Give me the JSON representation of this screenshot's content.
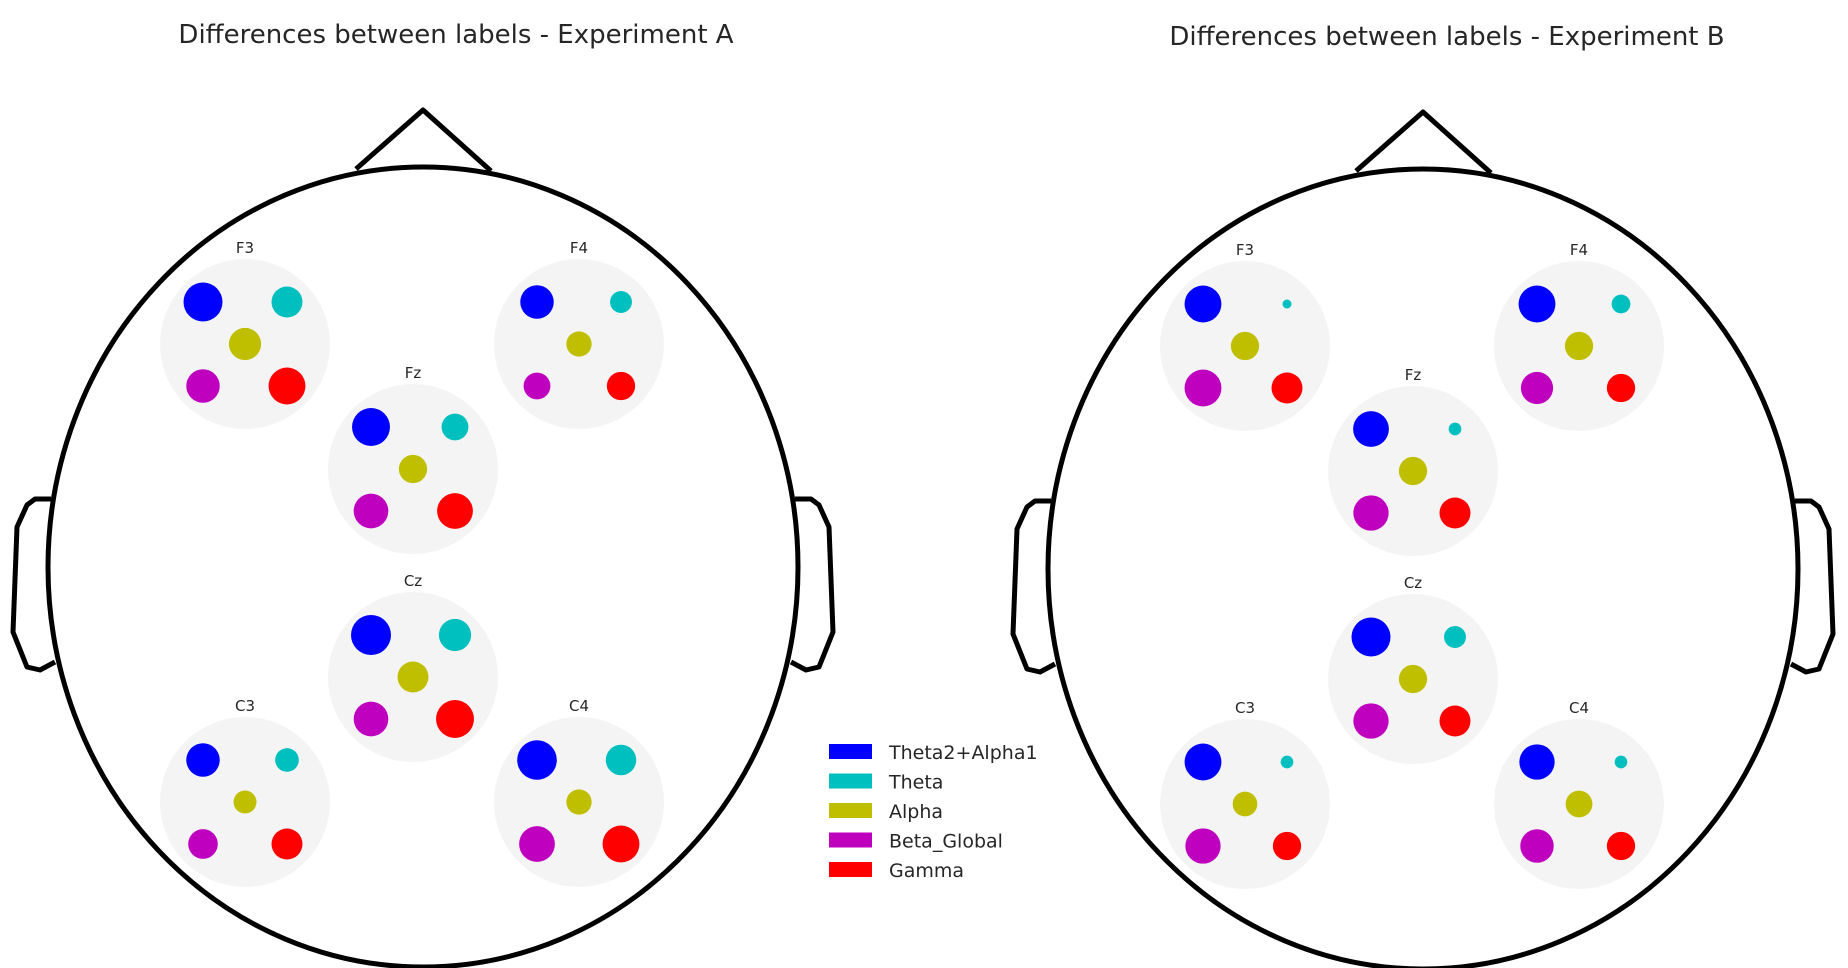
{
  "chart_data": [
    {
      "type": "scatter",
      "title": "Differences between labels - Experiment A",
      "bands": [
        {
          "name": "Theta2+Alpha1",
          "color": "#0000ff"
        },
        {
          "name": "Theta",
          "color": "#00bfbf"
        },
        {
          "name": "Alpha",
          "color": "#bfbf00"
        },
        {
          "name": "Beta_Global",
          "color": "#bf00bf"
        },
        {
          "name": "Gamma",
          "color": "#ff0000"
        }
      ],
      "electrodes": [
        {
          "label": "F3",
          "values": [
            0.95,
            0.6,
            0.65,
            0.7,
            0.85
          ]
        },
        {
          "label": "F4",
          "values": [
            0.7,
            0.3,
            0.4,
            0.45,
            0.5
          ]
        },
        {
          "label": "Fz",
          "values": [
            0.9,
            0.45,
            0.5,
            0.75,
            0.8
          ]
        },
        {
          "label": "Cz",
          "values": [
            1.0,
            0.65,
            0.6,
            0.75,
            0.9
          ]
        },
        {
          "label": "C3",
          "values": [
            0.7,
            0.35,
            0.33,
            0.55,
            0.6
          ]
        },
        {
          "label": "C4",
          "values": [
            0.98,
            0.58,
            0.4,
            0.8,
            0.85
          ]
        }
      ]
    },
    {
      "type": "scatter",
      "title": "Differences between labels - Experiment B",
      "bands": [
        {
          "name": "Theta2+Alpha1",
          "color": "#0000ff"
        },
        {
          "name": "Theta",
          "color": "#00bfbf"
        },
        {
          "name": "Alpha",
          "color": "#bfbf00"
        },
        {
          "name": "Beta_Global",
          "color": "#bf00bf"
        },
        {
          "name": "Gamma",
          "color": "#ff0000"
        }
      ],
      "electrodes": [
        {
          "label": "F3",
          "values": [
            0.85,
            0.05,
            0.5,
            0.85,
            0.6
          ]
        },
        {
          "label": "F4",
          "values": [
            0.85,
            0.22,
            0.5,
            0.65,
            0.5
          ]
        },
        {
          "label": "Fz",
          "values": [
            0.8,
            0.1,
            0.5,
            0.78,
            0.6
          ]
        },
        {
          "label": "Cz",
          "values": [
            0.95,
            0.3,
            0.5,
            0.78,
            0.6
          ]
        },
        {
          "label": "C3",
          "values": [
            0.85,
            0.1,
            0.38,
            0.78,
            0.5
          ]
        },
        {
          "label": "C4",
          "values": [
            0.78,
            0.1,
            0.45,
            0.7,
            0.5
          ]
        }
      ]
    }
  ],
  "legend": [
    {
      "name": "Theta2+Alpha1",
      "color": "#0000ff"
    },
    {
      "name": "Theta",
      "color": "#00bfbf"
    },
    {
      "name": "Alpha",
      "color": "#bfbf00"
    },
    {
      "name": "Beta_Global",
      "color": "#bf00bf"
    },
    {
      "name": "Gamma",
      "color": "#ff0000"
    }
  ]
}
